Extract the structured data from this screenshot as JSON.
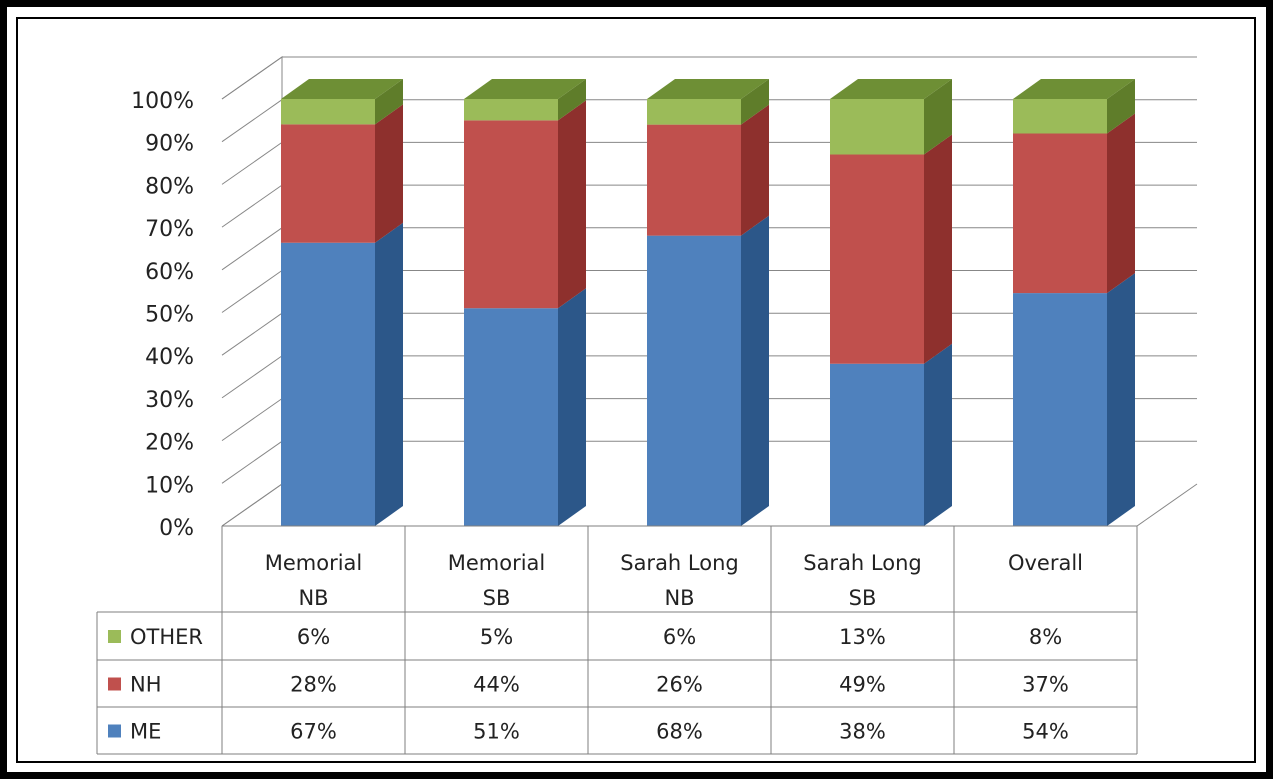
{
  "chart_data": {
    "type": "bar",
    "stacked": true,
    "percent_stacked": true,
    "style": "3d-column-with-data-table",
    "categories": [
      [
        "Memorial",
        "NB"
      ],
      [
        "Memorial",
        "SB"
      ],
      [
        "Sarah Long",
        "NB"
      ],
      [
        "Sarah Long",
        "SB"
      ],
      [
        "Overall"
      ]
    ],
    "series": [
      {
        "name": "ME",
        "values": [
          67,
          51,
          68,
          38,
          54
        ],
        "display": [
          "67%",
          "51%",
          "68%",
          "38%",
          "54%"
        ],
        "color": "#4f81bd",
        "side": "#2c5789",
        "top": "#7aa3d6"
      },
      {
        "name": "NH",
        "values": [
          28,
          44,
          26,
          49,
          37
        ],
        "display": [
          "28%",
          "44%",
          "26%",
          "49%",
          "37%"
        ],
        "color": "#c0504d",
        "side": "#8e302d",
        "top": "#d87b78"
      },
      {
        "name": "OTHER",
        "values": [
          6,
          5,
          6,
          13,
          8
        ],
        "display": [
          "6%",
          "5%",
          "6%",
          "13%",
          "8%"
        ],
        "color": "#9bbb59",
        "side": "#5f7d2a",
        "top": "#6e8f35"
      }
    ],
    "yticks": [
      "0%",
      "10%",
      "20%",
      "30%",
      "40%",
      "50%",
      "60%",
      "70%",
      "80%",
      "90%",
      "100%"
    ],
    "ylim": [
      0,
      100
    ],
    "table_row_order": [
      "OTHER",
      "NH",
      "ME"
    ],
    "grid": true,
    "legend": "in-data-table"
  }
}
